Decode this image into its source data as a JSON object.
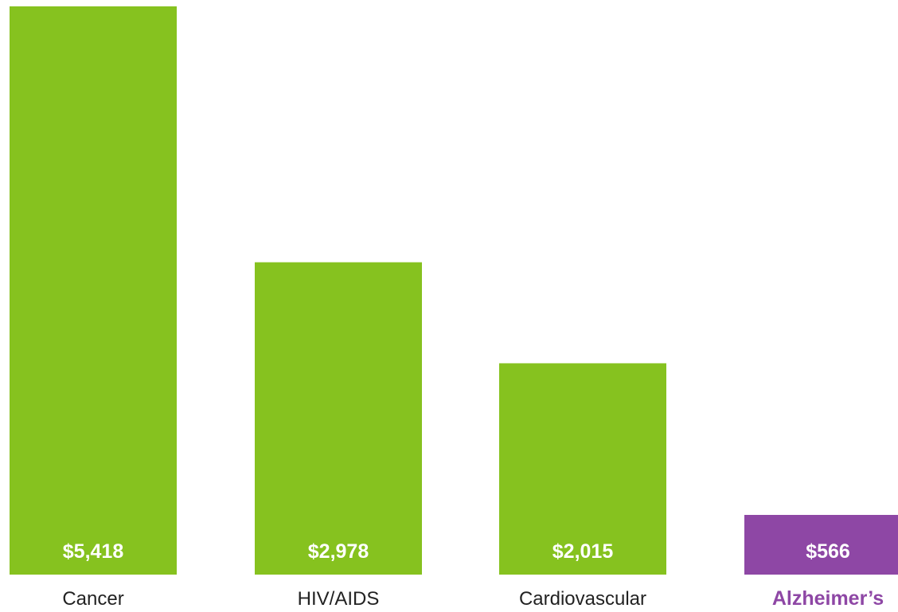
{
  "chart_data": {
    "type": "bar",
    "categories": [
      "Cancer",
      "HIV/AIDS",
      "Cardiovascular",
      "Alzheimer's"
    ],
    "values": [
      5418,
      2978,
      2015,
      566
    ],
    "value_labels": [
      "$5,418",
      "$2,978",
      "$2,015",
      "$566"
    ],
    "category_labels": [
      "Cancer",
      "HIV/AIDS",
      "Cardiovascular",
      "Alzheimer’s"
    ],
    "highlight_index": 3,
    "ylim": [
      0,
      5418
    ],
    "grid": false,
    "colors": {
      "default": "#86C21F",
      "highlight": "#8E47A5",
      "value_text": "#FFFFFF",
      "category_text": "#222222",
      "highlight_text": "#8E47A5"
    }
  }
}
